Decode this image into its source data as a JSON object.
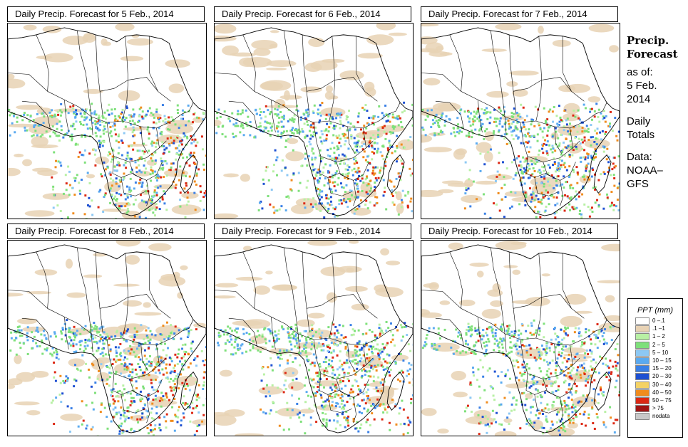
{
  "panels": [
    {
      "title": "Daily Precip. Forecast for  5 Feb., 2014"
    },
    {
      "title": "Daily Precip. Forecast for  6 Feb., 2014"
    },
    {
      "title": "Daily Precip. Forecast for  7 Feb., 2014"
    },
    {
      "title": "Daily Precip. Forecast for  8 Feb., 2014"
    },
    {
      "title": "Daily Precip. Forecast for  9 Feb., 2014"
    },
    {
      "title": "Daily Precip. Forecast for  10 Feb., 2014"
    }
  ],
  "side": {
    "title_line1": "Precip.",
    "title_line2": "Forecast",
    "asof_label": "as of:",
    "asof_date_line1": "5 Feb.",
    "asof_date_line2": "2014",
    "totals_line1": "Daily",
    "totals_line2": "Totals",
    "data_line1": "Data:",
    "data_line2": "NOAA–",
    "data_line3": "GFS"
  },
  "legend": {
    "title": "PPT (mm)",
    "items": [
      {
        "label": "0 –.1",
        "color": "#ffffff"
      },
      {
        "label": ".1 –1",
        "color": "#e8d2b4"
      },
      {
        "label": "1 – 2",
        "color": "#b8f0a4"
      },
      {
        "label": "2 – 5",
        "color": "#7ee07a"
      },
      {
        "label": "5 – 10",
        "color": "#8cc8f4"
      },
      {
        "label": "10 – 15",
        "color": "#5aaaf0"
      },
      {
        "label": "15 – 20",
        "color": "#3a80e6"
      },
      {
        "label": "20 – 30",
        "color": "#1e50d2"
      },
      {
        "label": "30 – 40",
        "color": "#f4d264"
      },
      {
        "label": "40 – 50",
        "color": "#f08c1e"
      },
      {
        "label": "50 – 75",
        "color": "#dc2814"
      },
      {
        "label": "> 75",
        "color": "#a01414"
      },
      {
        "label": "nodata",
        "color": "#c8c8c8"
      }
    ]
  }
}
